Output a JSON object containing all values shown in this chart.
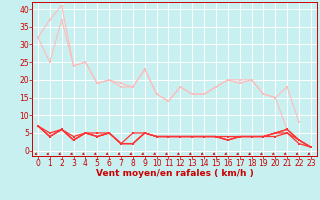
{
  "background_color": "#c8f0f0",
  "grid_color": "#ffffff",
  "xlabel": "Vent moyen/en rafales ( km/h )",
  "xlim": [
    -0.5,
    23.5
  ],
  "ylim": [
    -1.5,
    42
  ],
  "x_ticks": [
    0,
    1,
    2,
    3,
    4,
    5,
    6,
    7,
    8,
    9,
    10,
    11,
    12,
    13,
    14,
    15,
    16,
    17,
    18,
    19,
    20,
    21,
    22,
    23
  ],
  "y_ticks": [
    0,
    5,
    10,
    15,
    20,
    25,
    30,
    35,
    40
  ],
  "line1_color": "#ffbbbb",
  "line2_color": "#ffbbbb",
  "line3_color": "#ff3333",
  "line_dark": "#cc0000",
  "line1_y": [
    32,
    25,
    37,
    24,
    25,
    19,
    20,
    19,
    18,
    23,
    16,
    14,
    18,
    16,
    16,
    18,
    20,
    19,
    20,
    16,
    15,
    18,
    8,
    null
  ],
  "line2_y": [
    32,
    37,
    41,
    24,
    25,
    19,
    20,
    18,
    18,
    23,
    16,
    14,
    18,
    16,
    16,
    18,
    20,
    20,
    20,
    16,
    15,
    6,
    3,
    1
  ],
  "line3_y": [
    7,
    5,
    6,
    4,
    5,
    5,
    5,
    2,
    5,
    5,
    4,
    4,
    4,
    4,
    4,
    4,
    4,
    4,
    4,
    4,
    5,
    6,
    3,
    1
  ],
  "line4_y": [
    7,
    4,
    6,
    3,
    5,
    4,
    5,
    2,
    2,
    5,
    4,
    4,
    4,
    4,
    4,
    4,
    3,
    4,
    4,
    4,
    5,
    6,
    3,
    1
  ],
  "line5_y": [
    7,
    4,
    6,
    3,
    5,
    4,
    5,
    2,
    2,
    5,
    4,
    4,
    4,
    4,
    4,
    4,
    3,
    4,
    4,
    4,
    5,
    5,
    3,
    1
  ],
  "line6_y": [
    7,
    4,
    6,
    3,
    5,
    4,
    5,
    2,
    2,
    5,
    4,
    4,
    4,
    4,
    4,
    4,
    3,
    4,
    4,
    4,
    4,
    5,
    2,
    1
  ],
  "xlabel_fontsize": 6.5,
  "tick_fontsize": 5.5
}
